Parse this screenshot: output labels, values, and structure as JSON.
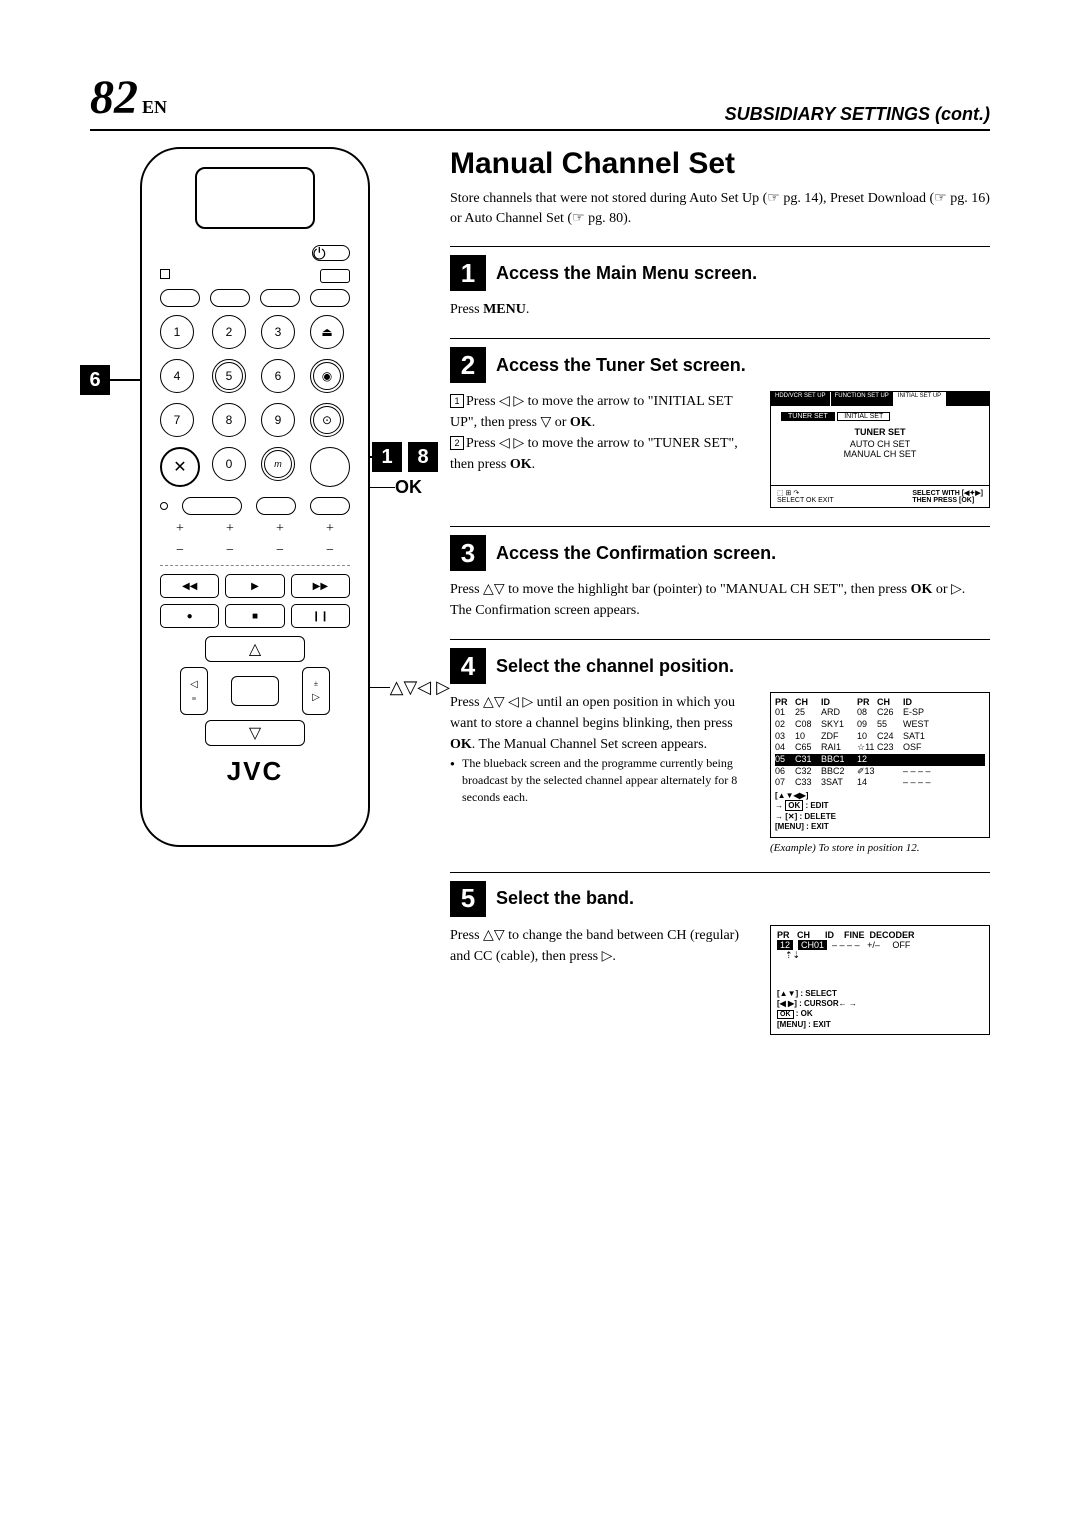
{
  "header": {
    "page_num": "82",
    "lang_suffix": "EN",
    "section": "SUBSIDIARY SETTINGS (cont.)"
  },
  "remote": {
    "brand": "JVC",
    "keypad": [
      "1",
      "2",
      "3",
      "4",
      "5",
      "6",
      "7",
      "8",
      "9",
      "0"
    ]
  },
  "callouts": {
    "c6": "6",
    "c1": "1",
    "c8": "8",
    "ok": "OK",
    "arrows": "△▽◁ ▷"
  },
  "main": {
    "heading": "Manual Channel Set",
    "intro1": "Store channels that were not stored during Auto Set Up (☞ pg. 14), Preset Download (☞ pg. 16) or Auto Channel Set (☞ pg. 80)."
  },
  "steps": [
    {
      "num": "1",
      "title": "Access the Main Menu screen.",
      "body": "Press MENU."
    },
    {
      "num": "2",
      "title": "Access the Tuner Set screen.",
      "sub1_n": "1",
      "sub1": "Press ◁ ▷ to move the arrow to \"INITIAL SET UP\", then press ▽ or OK.",
      "sub2_n": "2",
      "sub2": "Press ◁ ▷ to move the arrow to \"TUNER SET\", then press OK.",
      "screen": {
        "tabs": [
          "HDD/VCR SET UP",
          "FUNCTION SET UP",
          "INITIAL SET UP"
        ],
        "subtabs": [
          "TUNER SET",
          "INITIAL SET"
        ],
        "title": "TUNER SET",
        "items": [
          "AUTO CH SET",
          "MANUAL CH SET"
        ],
        "foot_l": "SELECT   OK   EXIT",
        "foot_r": "SELECT WITH [◀✦▶]\nTHEN PRESS [OK]"
      }
    },
    {
      "num": "3",
      "title": "Access the Confirmation screen.",
      "body": "Press △▽ to move the highlight bar (pointer) to \"MANUAL CH SET\", then press OK or ▷. The Confirmation screen appears."
    },
    {
      "num": "4",
      "title": "Select the channel position.",
      "body": "Press △▽ ◁ ▷ until an open position in which you want to store a channel begins blinking, then press OK. The Manual Channel Set screen appears.",
      "note": "The blueback screen and the programme currently being broadcast by the selected channel appear alternately for 8 seconds each.",
      "caption": "(Example) To store in position 12.",
      "table": {
        "head": [
          "PR",
          "CH",
          "ID",
          "PR",
          "CH",
          "ID"
        ],
        "rows": [
          [
            "01",
            "25",
            "ARD",
            "08",
            "C26",
            "E-SP"
          ],
          [
            "02",
            "C08",
            "SKY1",
            "09",
            "55",
            "WEST"
          ],
          [
            "03",
            "10",
            "ZDF",
            "10",
            "C24",
            "SAT1"
          ],
          [
            "04",
            "C65",
            "RAI1",
            "☆11",
            "C23",
            "OSF"
          ],
          [
            "05",
            "C31",
            "BBC1",
            "12",
            "",
            ""
          ],
          [
            "06",
            "C32",
            "BBC2",
            "✐13",
            "",
            "– – – –"
          ],
          [
            "07",
            "C33",
            "3SAT",
            "14",
            "",
            "– – – –"
          ]
        ],
        "foot": [
          "[▲▼◀▶]",
          "→ [OK] : EDIT",
          "→ [✕] : DELETE",
          "[MENU] : EXIT"
        ]
      }
    },
    {
      "num": "5",
      "title": "Select the band.",
      "body": "Press △▽ to change the band between CH (regular) and CC (cable), then press ▷.",
      "screen": {
        "head": "PR    CH       ID     FINE  DECODER",
        "row": "12  CH01  – – – –   +/–     OFF",
        "foot": [
          "[▲▼] : SELECT",
          "[◀ ▶] : CURSOR← →",
          "[OK] : OK",
          "[MENU] : EXIT"
        ]
      }
    }
  ]
}
